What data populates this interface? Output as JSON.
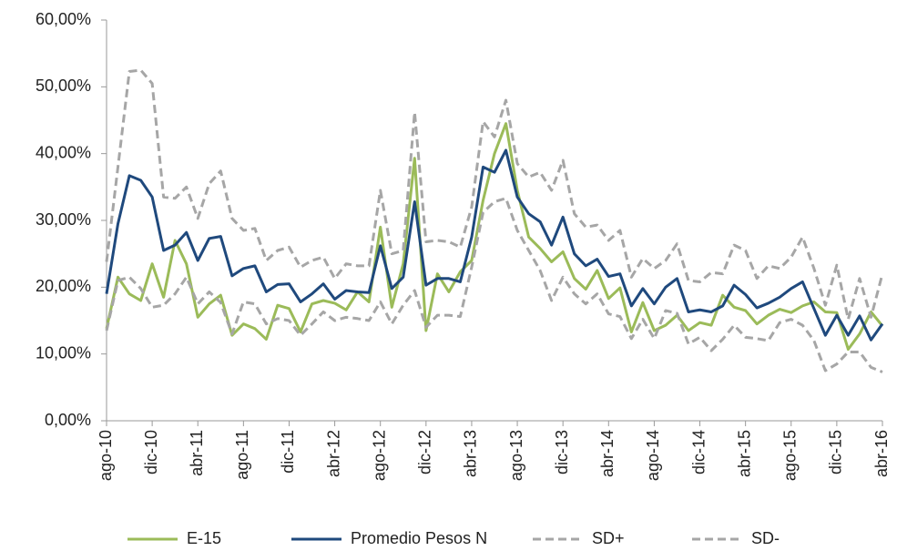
{
  "chart_data": {
    "type": "line",
    "categories": [
      "ago-10",
      null,
      null,
      null,
      "dic-10",
      null,
      null,
      null,
      "abr-11",
      null,
      null,
      null,
      "ago-11",
      null,
      null,
      null,
      "dic-11",
      null,
      null,
      null,
      "abr-12",
      null,
      null,
      null,
      "ago-12",
      null,
      null,
      null,
      "dic-12",
      null,
      null,
      null,
      "abr-13",
      null,
      null,
      null,
      "ago-13",
      null,
      null,
      null,
      "dic-13",
      null,
      null,
      null,
      "abr-14",
      null,
      null,
      null,
      "ago-14",
      null,
      null,
      null,
      "dic-14",
      null,
      null,
      null,
      "abr-15",
      null,
      null,
      null,
      "ago-15",
      null,
      null,
      null,
      "dic-15",
      null,
      null,
      null,
      "abr-16"
    ],
    "ylim": [
      0,
      60
    ],
    "yticks": [
      {
        "value": 0,
        "label": "0,00%"
      },
      {
        "value": 10,
        "label": "10,00%"
      },
      {
        "value": 20,
        "label": "20,00%"
      },
      {
        "value": 30,
        "label": "30,00%"
      },
      {
        "value": 40,
        "label": "40,00%"
      },
      {
        "value": 50,
        "label": "50,00%"
      },
      {
        "value": 60,
        "label": "60,00%"
      }
    ],
    "legend": "bottom",
    "series": [
      {
        "name": "E-15",
        "color": "#9bbb59",
        "dash": false,
        "values": [
          13.8,
          21.5,
          19,
          18,
          23.5,
          18.5,
          27,
          23.5,
          15.5,
          17.5,
          18.8,
          12.8,
          14.5,
          13.8,
          12.2,
          17.3,
          16.8,
          13.3,
          17.5,
          18,
          17.6,
          16.6,
          19.3,
          17.8,
          29,
          17,
          23.5,
          39.3,
          13.5,
          22,
          19.3,
          22.3,
          24,
          33,
          40,
          44.5,
          34.5,
          27.5,
          25.8,
          23.8,
          25.3,
          21.3,
          19.7,
          22.5,
          18.3,
          19.9,
          13.3,
          17.7,
          13.5,
          14.3,
          15.8,
          13.5,
          14.7,
          14.3,
          18.8,
          17,
          16.5,
          14.5,
          15.8,
          16.7,
          16.2,
          17.2,
          17.8,
          16.3,
          16.2,
          10.7,
          13,
          16.3,
          14.2
        ]
      },
      {
        "name": "Promedio Pesos N",
        "color": "#1f497d",
        "dash": false,
        "values": [
          19,
          29.5,
          36.7,
          36,
          33.5,
          25.5,
          26.3,
          28.2,
          24,
          27.3,
          27.6,
          21.7,
          22.8,
          23.2,
          19.3,
          20.4,
          20.5,
          17.8,
          19,
          20.5,
          18.2,
          19.5,
          19.3,
          19.2,
          26.2,
          19.8,
          21.5,
          32.8,
          20.3,
          21.3,
          21.3,
          20.8,
          27.5,
          38,
          37.2,
          40.5,
          33.5,
          31,
          29.8,
          26.3,
          30.5,
          25,
          23.2,
          24.2,
          21.6,
          22,
          17.2,
          19.8,
          17.5,
          20,
          21.3,
          16.3,
          16.6,
          16.3,
          17.2,
          20.3,
          18.9,
          16.9,
          17.6,
          18.5,
          19.8,
          20.8,
          16.8,
          12.8,
          15.8,
          12.8,
          15.7,
          12.1,
          14.5
        ]
      },
      {
        "name": "SD+",
        "color": "#a6a6a6",
        "dash": true,
        "values": [
          23.8,
          38,
          52.3,
          52.5,
          50.5,
          33.5,
          33.3,
          35,
          30.3,
          35.5,
          37.4,
          30.3,
          28.5,
          28.8,
          24,
          25.5,
          26,
          23,
          24,
          24.5,
          21.3,
          23.5,
          23.2,
          23.2,
          34.5,
          25,
          25.5,
          46.2,
          26.8,
          27,
          26.8,
          26,
          32,
          44.8,
          42.5,
          48,
          38.5,
          36.5,
          37.2,
          34.5,
          39,
          31,
          29,
          29.3,
          27,
          28.5,
          21.5,
          24.3,
          22.8,
          24,
          26.5,
          21,
          20.8,
          22.2,
          22,
          26.3,
          25.5,
          21.3,
          23.2,
          22.8,
          24.5,
          27.5,
          22.8,
          17.3,
          23.3,
          15.2,
          21.3,
          15.5,
          22
        ]
      },
      {
        "name": "SD-",
        "color": "#a6a6a6",
        "dash": true,
        "values": [
          13.5,
          21,
          21.5,
          19.8,
          17,
          17.3,
          19,
          21.5,
          17.5,
          19.3,
          17.7,
          13,
          17.8,
          17.5,
          14.5,
          15.3,
          15,
          12.8,
          14.5,
          16.3,
          15,
          15.5,
          15.3,
          15,
          17.8,
          14.5,
          17.3,
          19.5,
          14,
          15.8,
          15.8,
          15.6,
          23,
          31.2,
          32.8,
          33.3,
          28.5,
          25.5,
          22.5,
          18,
          21.5,
          19,
          17.5,
          19,
          16,
          15.6,
          12.3,
          15.2,
          12.3,
          16.5,
          16.1,
          11.5,
          12.5,
          10.5,
          12.2,
          14.3,
          12.5,
          12.3,
          12,
          14.7,
          15.2,
          14.3,
          12,
          7.5,
          8.5,
          10.3,
          10.3,
          8,
          7.3
        ]
      }
    ]
  }
}
